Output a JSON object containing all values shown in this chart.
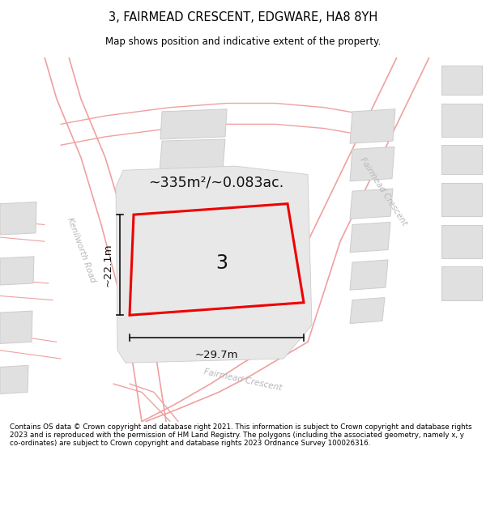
{
  "title": "3, FAIRMEAD CRESCENT, EDGWARE, HA8 8YH",
  "subtitle": "Map shows position and indicative extent of the property.",
  "footer": "Contains OS data © Crown copyright and database right 2021. This information is subject to Crown copyright and database rights 2023 and is reproduced with the permission of HM Land Registry. The polygons (including the associated geometry, namely x, y co-ordinates) are subject to Crown copyright and database rights 2023 Ordnance Survey 100026316.",
  "area_label": "~335m²/~0.083ac.",
  "width_label": "~29.7m",
  "height_label": "~22.1m",
  "plot_number": "3",
  "bg_color": "#ffffff",
  "plot_edge": "#ee0000",
  "plot_fill": "#e8e8e8",
  "street_color": "#f0a0a0",
  "building_fill": "#e0e0e0",
  "building_edge": "#cccccc",
  "street_label_color": "#b8b8b8",
  "dim_color": "#111111",
  "text_color": "#111111"
}
